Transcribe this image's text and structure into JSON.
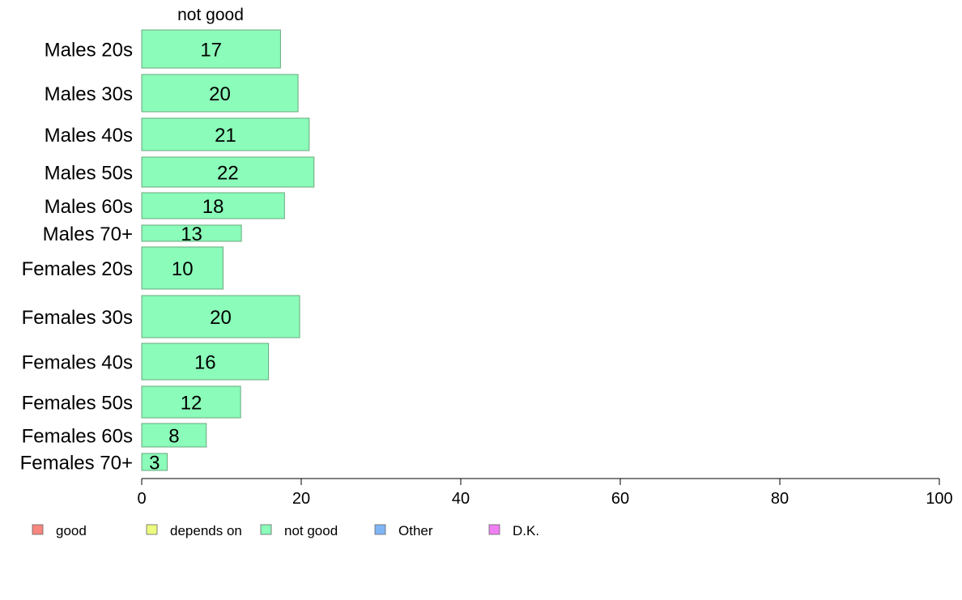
{
  "chart_data": {
    "type": "bar",
    "orientation": "horizontal",
    "title": "not good",
    "categories": [
      "Males 20s",
      "Males 30s",
      "Males 40s",
      "Males 50s",
      "Males 60s",
      "Males 70+",
      "Females 20s",
      "Females 30s",
      "Females 40s",
      "Females 50s",
      "Females 60s",
      "Females 70+"
    ],
    "series": [
      {
        "name": "not good",
        "values": [
          17.4,
          19.6,
          21.0,
          21.6,
          17.9,
          12.5,
          10.2,
          19.8,
          15.9,
          12.4,
          8.1,
          3.2
        ],
        "labels": [
          "17",
          "20",
          "21",
          "22",
          "18",
          "13",
          "10",
          "20",
          "16",
          "12",
          "8",
          "3"
        ]
      }
    ],
    "xlim": [
      0,
      100
    ],
    "xticks": [
      "0",
      "20",
      "40",
      "60",
      "80",
      "100"
    ],
    "legend": [
      "good",
      "depends on",
      "not good",
      "Other",
      "D.K."
    ],
    "legend_position": "bottom",
    "colors": {
      "good": "#f7867f",
      "depends on": "#ecfb7e",
      "not good": "#8bfcb9",
      "Other": "#7fb5f5",
      "D.K.": "#f07ff2",
      "bar_border": "#6aa87f",
      "axis": "#000000"
    }
  }
}
